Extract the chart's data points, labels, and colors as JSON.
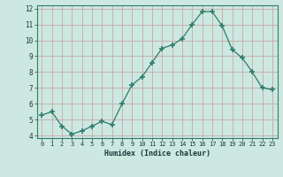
{
  "x": [
    0,
    1,
    2,
    3,
    4,
    5,
    6,
    7,
    8,
    9,
    10,
    11,
    12,
    13,
    14,
    15,
    16,
    17,
    18,
    19,
    20,
    21,
    22,
    23
  ],
  "y": [
    5.3,
    5.5,
    4.6,
    4.1,
    4.3,
    4.6,
    4.9,
    4.7,
    6.0,
    7.2,
    7.7,
    8.6,
    9.5,
    9.7,
    10.1,
    11.0,
    11.8,
    11.8,
    10.9,
    9.4,
    8.9,
    8.0,
    7.0,
    6.9
  ],
  "xlabel": "Humidex (Indice chaleur)",
  "ylim": [
    4,
    12
  ],
  "xlim": [
    -0.5,
    23.5
  ],
  "yticks": [
    4,
    5,
    6,
    7,
    8,
    9,
    10,
    11,
    12
  ],
  "xticks": [
    0,
    1,
    2,
    3,
    4,
    5,
    6,
    7,
    8,
    9,
    10,
    11,
    12,
    13,
    14,
    15,
    16,
    17,
    18,
    19,
    20,
    21,
    22,
    23
  ],
  "line_color": "#2d7d6e",
  "marker": "+",
  "bg_color": "#cce8e0",
  "grid_color": "#c8a8a8",
  "axis_color": "#2d7d6e",
  "text_color": "#1a3a3a",
  "xlabel_color": "#1a3a3a"
}
